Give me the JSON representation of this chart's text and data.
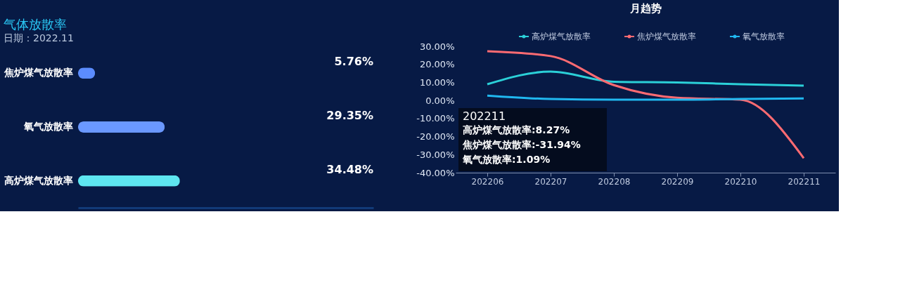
{
  "chart_data": [
    {
      "type": "bar",
      "orientation": "horizontal",
      "title": "气体放散率",
      "subtitle": "日期：2022.11",
      "categories": [
        "焦炉煤气放散率",
        "氧气放散率",
        "高炉煤气放散率"
      ],
      "values": [
        5.76,
        29.35,
        34.48
      ],
      "colors": [
        "#5b8cff",
        "#6a98ff",
        "#5ee6f0"
      ],
      "value_labels": [
        "5.76%",
        "29.35%",
        "34.48%"
      ],
      "xlim": [
        0,
        100
      ],
      "tick_labels": "y",
      "grid": false
    },
    {
      "type": "line",
      "title": "月趋势",
      "categories": [
        "202206",
        "202207",
        "202208",
        "202209",
        "202210",
        "202211"
      ],
      "series": [
        {
          "name": "高炉煤气放散率",
          "color": "#2bd0d8",
          "values": [
            9,
            16,
            10.4,
            10,
            9,
            8.27
          ]
        },
        {
          "name": "焦炉煤气放散率",
          "color": "#ff6b72",
          "values": [
            27.3,
            24.6,
            8.5,
            1.5,
            0.4,
            -31.94
          ]
        },
        {
          "name": "氧气放散率",
          "color": "#20b8f0",
          "values": [
            2.7,
            0.8,
            0.4,
            0.4,
            0.8,
            1.09
          ]
        }
      ],
      "ylim": [
        -40,
        30
      ],
      "yticks": [
        {
          "value": -40,
          "label": "-40.00%"
        },
        {
          "value": -30,
          "label": "-30.00%"
        },
        {
          "value": -20,
          "label": "-20.00%"
        },
        {
          "value": -10,
          "label": "-10.00%"
        },
        {
          "value": 0,
          "label": "0.00%"
        },
        {
          "value": 10,
          "label": "10.00%"
        },
        {
          "value": 20,
          "label": "20.00%"
        },
        {
          "value": 30,
          "label": "30.00%"
        }
      ],
      "legend": "top",
      "grid": false,
      "marker": "none",
      "line_style": "solid",
      "annotations": [
        "202211",
        "高炉煤气放散率:8.27%",
        "焦炉煤气放散率:-31.94%",
        "氧气放散率:1.09%"
      ]
    }
  ]
}
